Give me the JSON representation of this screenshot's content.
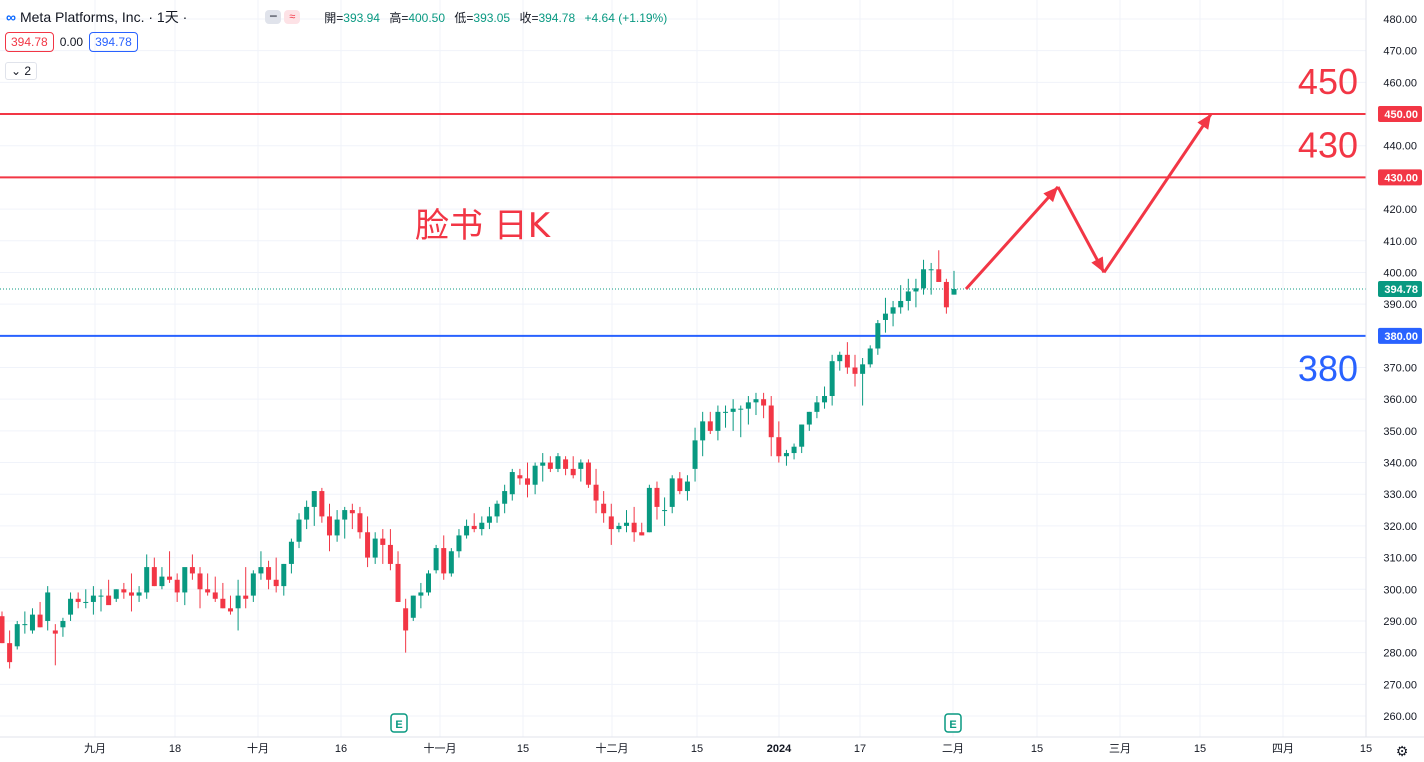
{
  "header": {
    "symbol_icon": "meta-logo-icon",
    "symbol": "Meta Platforms, Inc. · 1天 ·",
    "ohlc": [
      {
        "label": "開=",
        "value": "393.94"
      },
      {
        "label": "高=",
        "value": "400.50"
      },
      {
        "label": "低=",
        "value": "393.05"
      },
      {
        "label": "收=",
        "value": "394.78"
      },
      {
        "label": "",
        "value": "+4.64 (+1.19%)"
      }
    ]
  },
  "quote": {
    "sell": "394.78",
    "spread": "0.00",
    "buy": "394.78"
  },
  "indicators_toggle": "2",
  "colors": {
    "up": "#089981",
    "down": "#f23645",
    "resistance": "#f23645",
    "support": "#2962ff",
    "annotation": "#f23645",
    "grid": "#f0f3fa"
  },
  "chart_data": {
    "type": "candlestick",
    "title": "脸书 日K",
    "y_axis": {
      "min": 260,
      "max": 480,
      "ticks": [
        260,
        270,
        280,
        290,
        300,
        310,
        320,
        330,
        340,
        350,
        360,
        370,
        380,
        390,
        400,
        410,
        420,
        430,
        440,
        450,
        460,
        470,
        480
      ],
      "position": "right"
    },
    "x_axis": {
      "labels": [
        "九月",
        "18",
        "十月",
        "16",
        "十一月",
        "15",
        "十二月",
        "15",
        "2024",
        "17",
        "二月",
        "15",
        "三月",
        "15",
        "四月",
        "15"
      ]
    },
    "last_price": 394.78,
    "horizontal_lines": [
      {
        "value": 450,
        "label": "450",
        "tag": "450.00",
        "color": "#f23645"
      },
      {
        "value": 430,
        "label": "430",
        "tag": "430.00",
        "color": "#f23645"
      },
      {
        "value": 380,
        "label": "380",
        "tag": "380.00",
        "color": "#2962ff"
      }
    ],
    "earnings_markers": [
      {
        "near": "十一月",
        "label": "E"
      },
      {
        "near": "二月",
        "label": "E"
      }
    ],
    "candles": [
      [
        291.5,
        293,
        283,
        283
      ],
      [
        283,
        287,
        275,
        277
      ],
      [
        282,
        290,
        281,
        289
      ],
      [
        289,
        293,
        286,
        289
      ],
      [
        287,
        294,
        286,
        292
      ],
      [
        292,
        296,
        288,
        288
      ],
      [
        290,
        301,
        287,
        299
      ],
      [
        287,
        289,
        276,
        286
      ],
      [
        288,
        291,
        285,
        290
      ],
      [
        292,
        299,
        290,
        297
      ],
      [
        297,
        299,
        294,
        296
      ],
      [
        296,
        300,
        294,
        296
      ],
      [
        296,
        301,
        292,
        298
      ],
      [
        298,
        300,
        293,
        298
      ],
      [
        298,
        303,
        297,
        295
      ],
      [
        297,
        300,
        296,
        300
      ],
      [
        300,
        302,
        297,
        299
      ],
      [
        299,
        305,
        293,
        298
      ],
      [
        298,
        301,
        296,
        299
      ],
      [
        299,
        311,
        297,
        307
      ],
      [
        307,
        310,
        301,
        301
      ],
      [
        301,
        307,
        300,
        304
      ],
      [
        304,
        312,
        302,
        303
      ],
      [
        303,
        305,
        296,
        299
      ],
      [
        299,
        305,
        295,
        307
      ],
      [
        307,
        311,
        303,
        305
      ],
      [
        305,
        307,
        294,
        300
      ],
      [
        300,
        305,
        298,
        299
      ],
      [
        299,
        304,
        296,
        297
      ],
      [
        297,
        302,
        294,
        294
      ],
      [
        294,
        298,
        292,
        293
      ],
      [
        294,
        303,
        287,
        298
      ],
      [
        298,
        307,
        294,
        297
      ],
      [
        298,
        306,
        296,
        305
      ],
      [
        305,
        312,
        303,
        307
      ],
      [
        307,
        309,
        300,
        303
      ],
      [
        303,
        310,
        299,
        301
      ],
      [
        301,
        308,
        298,
        308
      ],
      [
        308,
        316,
        305,
        315
      ],
      [
        315,
        324,
        313,
        322
      ],
      [
        322,
        328,
        319,
        326
      ],
      [
        326,
        331,
        320,
        331
      ],
      [
        331,
        332,
        321,
        323
      ],
      [
        323,
        327,
        312,
        317
      ],
      [
        317,
        325,
        315,
        322
      ],
      [
        322,
        326,
        316,
        325
      ],
      [
        325,
        327,
        319,
        324
      ],
      [
        324,
        326,
        316,
        318
      ],
      [
        318,
        323,
        307,
        310
      ],
      [
        310,
        318,
        308,
        316
      ],
      [
        316,
        319,
        308,
        314
      ],
      [
        314,
        319,
        306,
        308
      ],
      [
        308,
        312,
        296,
        296
      ],
      [
        294,
        297,
        280,
        287
      ],
      [
        291,
        298,
        290,
        298
      ],
      [
        298,
        302,
        294,
        299
      ],
      [
        299,
        306,
        298,
        305
      ],
      [
        306,
        314,
        305,
        313
      ],
      [
        313,
        317,
        303,
        305
      ],
      [
        305,
        313,
        304,
        312
      ],
      [
        312,
        319,
        310,
        317
      ],
      [
        317,
        322,
        316,
        320
      ],
      [
        320,
        324,
        318,
        319
      ],
      [
        319,
        323,
        317,
        321
      ],
      [
        321,
        326,
        319,
        323
      ],
      [
        323,
        328,
        321,
        327
      ],
      [
        327,
        333,
        324,
        331
      ],
      [
        330,
        338,
        328,
        337
      ],
      [
        336,
        338,
        333,
        335
      ],
      [
        335,
        340,
        329,
        333
      ],
      [
        333,
        340,
        330,
        339
      ],
      [
        339,
        343,
        334,
        340
      ],
      [
        340,
        342,
        337,
        338
      ],
      [
        338,
        343,
        337,
        342
      ],
      [
        341,
        342,
        336,
        338
      ],
      [
        338,
        342,
        335,
        336
      ],
      [
        338,
        341,
        334,
        340
      ],
      [
        340,
        341,
        332,
        333
      ],
      [
        333,
        338,
        324,
        328
      ],
      [
        327,
        331,
        321,
        324
      ],
      [
        323,
        327,
        314,
        319
      ],
      [
        319,
        321,
        318,
        320
      ],
      [
        320,
        325,
        318,
        321
      ],
      [
        321,
        326,
        315,
        318
      ],
      [
        318,
        321,
        317,
        317
      ],
      [
        318,
        333,
        318,
        332
      ],
      [
        332,
        334,
        322,
        326
      ],
      [
        325,
        329,
        320,
        325
      ],
      [
        326,
        336,
        324,
        335
      ],
      [
        335,
        337,
        330,
        331
      ],
      [
        331,
        336,
        328,
        334
      ],
      [
        338,
        351,
        334,
        347
      ],
      [
        347,
        356,
        342,
        353
      ],
      [
        353,
        356,
        349,
        350
      ],
      [
        350,
        358,
        347,
        356
      ],
      [
        356,
        358,
        351,
        356
      ],
      [
        356,
        360,
        350,
        357
      ],
      [
        357,
        358,
        348,
        357
      ],
      [
        357,
        361,
        352,
        359
      ],
      [
        359,
        362,
        355,
        360
      ],
      [
        360,
        362,
        354,
        358
      ],
      [
        358,
        361,
        342,
        348
      ],
      [
        348,
        353,
        340,
        342
      ],
      [
        342,
        344,
        339,
        343
      ],
      [
        343,
        346,
        341,
        345
      ],
      [
        345,
        352,
        343,
        352
      ],
      [
        352,
        356,
        350,
        356
      ],
      [
        356,
        361,
        354,
        359
      ],
      [
        359,
        364,
        357,
        361
      ],
      [
        361,
        374,
        358,
        372
      ],
      [
        372,
        375,
        369,
        374
      ],
      [
        374,
        378,
        368,
        370
      ],
      [
        370,
        374,
        364,
        368
      ],
      [
        368,
        373,
        358,
        371
      ],
      [
        371,
        377,
        370,
        376
      ],
      [
        376,
        385,
        374,
        384
      ],
      [
        385,
        392,
        381,
        387
      ],
      [
        387,
        391,
        383,
        389
      ],
      [
        389,
        396,
        387,
        391
      ],
      [
        391,
        398,
        388,
        394
      ],
      [
        394,
        398,
        389,
        395
      ],
      [
        395,
        404,
        393,
        401
      ],
      [
        401,
        403,
        393,
        401
      ],
      [
        401,
        407,
        399,
        397
      ],
      [
        397,
        398,
        387,
        389
      ],
      [
        393,
        400.5,
        393,
        394.78
      ]
    ],
    "projection_path": [
      [
        {
          "date_label": "二月"
        },
        394.78
      ],
      [
        {
          "date_label": "二月15"
        },
        427
      ],
      [
        {
          "date_label": "二月下旬"
        },
        400
      ],
      [
        {
          "date_label": "三月15"
        },
        450
      ]
    ]
  }
}
